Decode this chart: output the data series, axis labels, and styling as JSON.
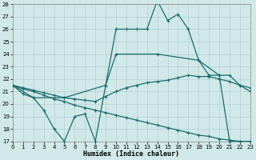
{
  "xlabel": "Humidex (Indice chaleur)",
  "xlim": [
    0,
    23
  ],
  "ylim": [
    17,
    28
  ],
  "yticks": [
    17,
    18,
    19,
    20,
    21,
    22,
    23,
    24,
    25,
    26,
    27,
    28
  ],
  "xticks": [
    0,
    1,
    2,
    3,
    4,
    5,
    6,
    7,
    8,
    9,
    10,
    11,
    12,
    13,
    14,
    15,
    16,
    17,
    18,
    19,
    20,
    21,
    22,
    23
  ],
  "background_color": "#d0e8e8",
  "grid_color": "#c0d8d8",
  "line_color": "#1a6b6b",
  "line1_x": [
    0,
    1,
    2,
    3,
    4,
    5,
    6,
    7,
    8,
    9,
    10,
    11,
    12,
    13,
    14,
    15,
    16,
    17,
    18,
    19,
    20,
    21,
    22,
    23
  ],
  "line1_y": [
    21.5,
    20.8,
    20.5,
    19.5,
    18.0,
    17.0,
    19.0,
    19.2,
    17.0,
    21.5,
    26.0,
    26.0,
    26.0,
    26.0,
    28.3,
    26.7,
    27.2,
    26.0,
    23.5,
    22.3,
    22.3,
    17.0,
    17.0,
    17.0
  ],
  "line2_x": [
    0,
    2,
    5,
    9,
    10,
    14,
    18,
    20,
    21,
    22,
    23
  ],
  "line2_y": [
    21.5,
    20.5,
    20.5,
    21.5,
    24.0,
    24.0,
    23.5,
    22.3,
    22.3,
    21.5,
    21.0
  ],
  "line3_x": [
    0,
    1,
    2,
    3,
    4,
    5,
    6,
    7,
    8,
    9,
    10,
    11,
    12,
    13,
    14,
    15,
    16,
    17,
    18,
    19,
    20,
    21,
    22,
    23
  ],
  "line3_y": [
    21.5,
    21.3,
    21.1,
    20.9,
    20.7,
    20.5,
    20.4,
    20.3,
    20.2,
    20.6,
    21.0,
    21.3,
    21.5,
    21.7,
    21.8,
    21.9,
    22.1,
    22.3,
    22.2,
    22.2,
    22.0,
    21.8,
    21.5,
    21.3
  ],
  "line4_x": [
    0,
    1,
    2,
    3,
    4,
    5,
    6,
    7,
    8,
    9,
    10,
    11,
    12,
    13,
    14,
    15,
    16,
    17,
    18,
    19,
    20,
    21,
    22,
    23
  ],
  "line4_y": [
    21.5,
    21.2,
    21.0,
    20.7,
    20.4,
    20.2,
    19.9,
    19.7,
    19.5,
    19.3,
    19.1,
    18.9,
    18.7,
    18.5,
    18.3,
    18.1,
    17.9,
    17.7,
    17.5,
    17.4,
    17.2,
    17.1,
    17.0,
    17.0
  ]
}
